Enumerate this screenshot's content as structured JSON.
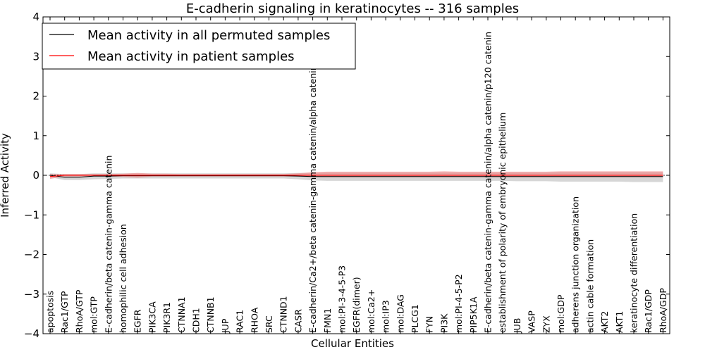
{
  "chart_data": {
    "type": "line",
    "title": "E-cadherin signaling in keratinocytes -- 316 samples",
    "xlabel": "Cellular Entities",
    "ylabel": "Inferred Activity",
    "ylim": [
      -4,
      4
    ],
    "yticks": [
      "−4",
      "−3",
      "−2",
      "−1",
      "0",
      "1",
      "2",
      "3",
      "4"
    ],
    "grid": false,
    "legend_position": "top-left",
    "categories": [
      "apoptosis",
      "Rac1/GTP",
      "RhoA/GTP",
      "mol:GTP",
      "E-cadherin/beta catenin-gamma catenin",
      "homophilic cell adhesion",
      "EGFR",
      "PIK3CA",
      "PIK3R1",
      "CTNNA1",
      "CDH1",
      "CTNNB1",
      "JUP",
      "RAC1",
      "RHOA",
      "SRC",
      "CTNND1",
      "CASR",
      "E-cadherin/Ca2+/beta catenin-gamma catenin/alpha catenin",
      "FMN1",
      "mol:PI-3-4-5-P3",
      "EGFR(dimer)",
      "mol:Ca2+",
      "mol:IP3",
      "mol:DAG",
      "PLCG1",
      "FYN",
      "PI3K",
      "mol:PI-4-5-P2",
      "PIP5K1A",
      "E-cadherin/beta catenin-gamma catenin/alpha catenin/p120 catenin",
      "establishment of polarity of embryonic epithelium",
      "JUB",
      "VASP",
      "ZYX",
      "mol:GDP",
      "adherens junction organization",
      "actin cable formation",
      "AKT2",
      "AKT1",
      "keratinocyte differentiation",
      "Rac1/GDP",
      "RhoA/GDP"
    ],
    "series": [
      {
        "name": "Mean activity in all permuted samples",
        "color": "#000000",
        "band_color": "#c8c8c8",
        "values": [
          0.0,
          -0.05,
          -0.05,
          -0.02,
          -0.02,
          -0.01,
          -0.01,
          -0.01,
          -0.01,
          -0.01,
          -0.01,
          -0.01,
          -0.01,
          -0.01,
          -0.01,
          -0.01,
          -0.01,
          -0.02,
          -0.03,
          -0.03,
          -0.03,
          -0.03,
          -0.03,
          -0.03,
          -0.03,
          -0.03,
          -0.03,
          -0.03,
          -0.03,
          -0.03,
          -0.03,
          -0.03,
          -0.03,
          -0.03,
          -0.03,
          -0.03,
          -0.03,
          -0.03,
          -0.03,
          -0.03,
          -0.03,
          -0.03,
          -0.03
        ],
        "lower": [
          -0.05,
          -0.12,
          -0.12,
          -0.1,
          -0.09,
          -0.08,
          -0.08,
          -0.08,
          -0.08,
          -0.08,
          -0.08,
          -0.08,
          -0.08,
          -0.08,
          -0.08,
          -0.08,
          -0.08,
          -0.1,
          -0.13,
          -0.14,
          -0.14,
          -0.14,
          -0.14,
          -0.14,
          -0.14,
          -0.14,
          -0.14,
          -0.14,
          -0.14,
          -0.14,
          -0.14,
          -0.14,
          -0.15,
          -0.15,
          -0.15,
          -0.16,
          -0.16,
          -0.16,
          -0.16,
          -0.16,
          -0.17,
          -0.17,
          -0.17
        ],
        "upper": [
          0.05,
          0.03,
          0.03,
          0.05,
          0.05,
          0.05,
          0.05,
          0.05,
          0.05,
          0.05,
          0.05,
          0.05,
          0.05,
          0.05,
          0.05,
          0.05,
          0.05,
          0.06,
          0.06,
          0.07,
          0.07,
          0.07,
          0.07,
          0.07,
          0.07,
          0.07,
          0.07,
          0.07,
          0.07,
          0.07,
          0.07,
          0.07,
          0.07,
          0.07,
          0.07,
          0.08,
          0.08,
          0.08,
          0.08,
          0.08,
          0.08,
          0.08,
          0.08
        ]
      },
      {
        "name": "Mean activity in patient samples",
        "color": "#ff0000",
        "band_color": "#f08080",
        "values": [
          -0.03,
          0.0,
          0.0,
          0.0,
          0.0,
          0.0,
          0.0,
          0.0,
          0.0,
          0.0,
          0.0,
          0.0,
          0.0,
          0.0,
          0.0,
          0.0,
          0.0,
          0.0,
          0.0,
          0.0,
          0.0,
          0.0,
          0.0,
          0.0,
          0.0,
          0.0,
          0.0,
          0.0,
          0.0,
          0.0,
          0.0,
          0.0,
          0.0,
          0.0,
          0.0,
          0.0,
          0.0,
          0.0,
          0.0,
          0.0,
          0.0,
          0.0,
          0.0
        ],
        "lower": [
          -0.09,
          -0.03,
          -0.03,
          -0.03,
          -0.03,
          -0.04,
          -0.06,
          -0.03,
          -0.03,
          -0.03,
          -0.03,
          -0.03,
          -0.03,
          -0.03,
          -0.03,
          -0.03,
          -0.03,
          -0.03,
          -0.05,
          -0.05,
          -0.05,
          -0.05,
          -0.05,
          -0.05,
          -0.05,
          -0.05,
          -0.05,
          -0.05,
          -0.05,
          -0.05,
          -0.05,
          -0.05,
          -0.05,
          -0.05,
          -0.05,
          -0.05,
          -0.05,
          -0.05,
          -0.05,
          -0.05,
          -0.05,
          -0.05,
          -0.05
        ],
        "upper": [
          0.03,
          0.03,
          0.03,
          0.03,
          0.03,
          0.04,
          0.06,
          0.04,
          0.04,
          0.03,
          0.03,
          0.03,
          0.03,
          0.03,
          0.03,
          0.03,
          0.03,
          0.05,
          0.08,
          0.09,
          0.09,
          0.09,
          0.09,
          0.09,
          0.09,
          0.09,
          0.09,
          0.1,
          0.09,
          0.09,
          0.09,
          0.09,
          0.09,
          0.09,
          0.09,
          0.1,
          0.1,
          0.1,
          0.1,
          0.1,
          0.1,
          0.1,
          0.1
        ]
      }
    ]
  }
}
